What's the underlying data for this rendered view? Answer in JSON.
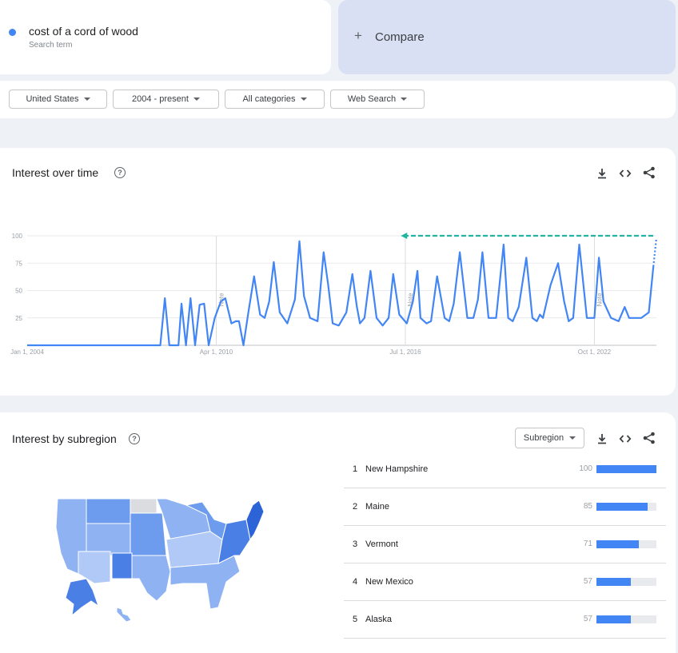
{
  "search": {
    "term": "cost of a cord of wood",
    "subtitle": "Search term",
    "dot_color": "#4285f4"
  },
  "compare": {
    "icon": "plus-icon",
    "plus": "+",
    "label": "Compare"
  },
  "filters": [
    {
      "label": "United States"
    },
    {
      "label": "2004 - present"
    },
    {
      "label": "All categories"
    },
    {
      "label": "Web Search"
    }
  ],
  "interest_over_time": {
    "title": "Interest over time",
    "help": "?",
    "tools": [
      "download-icon",
      "embed-icon",
      "share-icon"
    ]
  },
  "chart_data": {
    "type": "line",
    "ylim": [
      0,
      100
    ],
    "y_ticks": [
      25,
      50,
      75,
      100
    ],
    "x_tick_labels": [
      "Jan 1, 2004",
      "Apr 1, 2010",
      "Jul 1, 2016",
      "Oct 1, 2022"
    ],
    "note_labels": [
      "Note",
      "Note",
      "Note"
    ],
    "series_color": "#4285f4",
    "arrow_color": "#1fb5a0",
    "x": [
      2004.0,
      2005.0,
      2006.0,
      2007.0,
      2008.0,
      2008.4,
      2008.55,
      2008.7,
      2009.0,
      2009.1,
      2009.25,
      2009.4,
      2009.55,
      2009.7,
      2009.85,
      2010.0,
      2010.2,
      2010.4,
      2010.55,
      2010.75,
      2010.9,
      2011.0,
      2011.15,
      2011.3,
      2011.5,
      2011.7,
      2011.85,
      2012.0,
      2012.15,
      2012.35,
      2012.6,
      2012.85,
      2013.0,
      2013.15,
      2013.35,
      2013.6,
      2013.8,
      2013.95,
      2014.1,
      2014.3,
      2014.55,
      2014.75,
      2014.9,
      2015.0,
      2015.15,
      2015.35,
      2015.55,
      2015.75,
      2015.95,
      2016.1,
      2016.3,
      2016.55,
      2016.75,
      2016.9,
      2017.0,
      2017.2,
      2017.35,
      2017.55,
      2017.8,
      2017.95,
      2018.1,
      2018.3,
      2018.55,
      2018.75,
      2018.9,
      2019.05,
      2019.25,
      2019.5,
      2019.75,
      2019.9,
      2020.05,
      2020.25,
      2020.5,
      2020.7,
      2020.85,
      2020.95,
      2021.05,
      2021.3,
      2021.55,
      2021.75,
      2021.9,
      2022.05,
      2022.25,
      2022.5,
      2022.75,
      2022.9,
      2023.05,
      2023.3,
      2023.55,
      2023.75,
      2023.9,
      2024.05,
      2024.3,
      2024.55,
      2024.7
    ],
    "values": [
      0,
      0,
      0,
      0,
      0,
      0,
      43,
      0,
      0,
      38,
      0,
      43,
      0,
      37,
      38,
      0,
      25,
      40,
      43,
      20,
      22,
      22,
      0,
      28,
      63,
      28,
      25,
      40,
      76,
      30,
      20,
      42,
      95,
      45,
      25,
      22,
      85,
      55,
      20,
      18,
      30,
      65,
      35,
      20,
      25,
      68,
      25,
      18,
      25,
      65,
      28,
      20,
      40,
      68,
      25,
      20,
      22,
      63,
      25,
      22,
      38,
      85,
      25,
      25,
      42,
      85,
      25,
      25,
      92,
      25,
      22,
      35,
      80,
      25,
      22,
      28,
      25,
      55,
      75,
      40,
      22,
      25,
      92,
      25,
      25,
      80,
      40,
      25,
      22,
      35,
      25,
      25,
      25,
      30,
      72
    ],
    "projection": {
      "x": [
        2024.7,
        2024.8
      ],
      "values": [
        72,
        98
      ]
    },
    "arrow": {
      "from_x": 2024.8,
      "to_x": 2016.35,
      "y": 100
    }
  },
  "interest_by_subregion": {
    "title": "Interest by subregion",
    "help": "?",
    "select_label": "Subregion",
    "tools": [
      "download-icon",
      "embed-icon",
      "share-icon"
    ],
    "rows": [
      {
        "rank": "1",
        "name": "New Hampshire",
        "value": "100",
        "fraction": 1.0
      },
      {
        "rank": "2",
        "name": "Maine",
        "value": "85",
        "fraction": 0.85
      },
      {
        "rank": "3",
        "name": "Vermont",
        "value": "71",
        "fraction": 0.71
      },
      {
        "rank": "4",
        "name": "New Mexico",
        "value": "57",
        "fraction": 0.57
      },
      {
        "rank": "5",
        "name": "Alaska",
        "value": "57",
        "fraction": 0.57
      }
    ],
    "map_colors": [
      "#4a80e6",
      "#6d9bee",
      "#8fb2f3",
      "#b1c9f6",
      "#dadce0",
      "#2c63d6"
    ]
  }
}
